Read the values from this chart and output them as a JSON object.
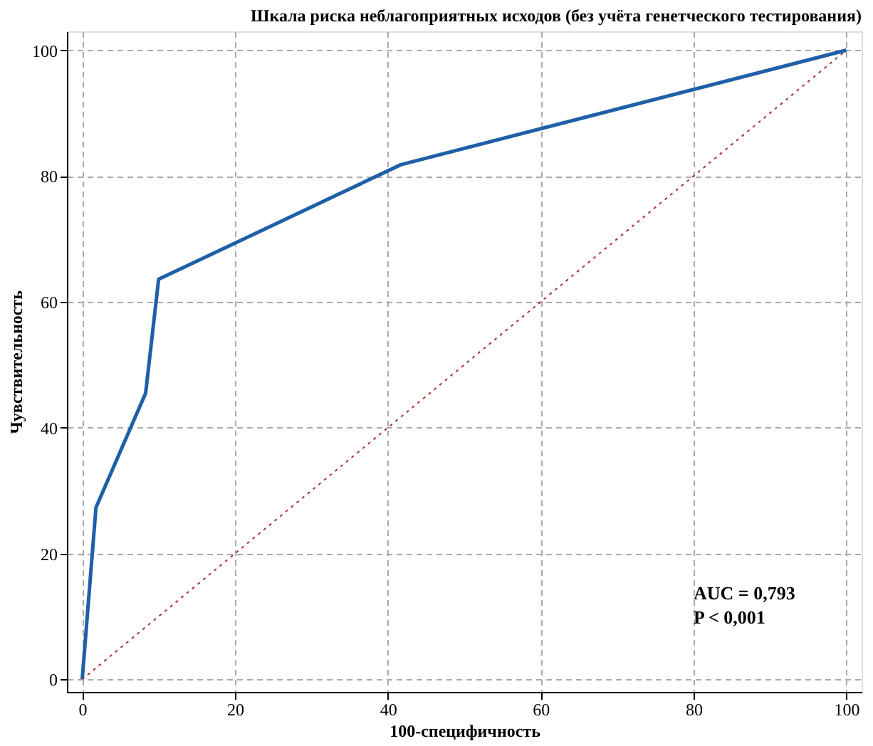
{
  "chart_data": {
    "type": "line",
    "title": "Шкала  риска неблагоприятных  исходов (без учёта генетческого тестирования)",
    "xlabel": "100-специфичность",
    "ylabel": "Чувствительность",
    "series": [
      {
        "color": "#1f5fa8",
        "x": [
          0,
          1.8,
          8.3,
          10,
          41.7,
          100
        ],
        "values": [
          0,
          27.3,
          45.5,
          63.6,
          81.8,
          100
        ]
      },
      {
        "color": "#a83232",
        "x": [
          0,
          100
        ],
        "values": [
          0,
          100
        ],
        "line_style": "dotted"
      }
    ],
    "xlim": [
      -2,
      102
    ],
    "ylim": [
      -2,
      103
    ],
    "xticks": [
      0,
      20,
      40,
      60,
      80,
      100
    ],
    "yticks": [
      0,
      20,
      40,
      60,
      80,
      100
    ],
    "grid": true,
    "annotations": [
      "AUC =  0,793",
      "P < 0,001"
    ]
  }
}
